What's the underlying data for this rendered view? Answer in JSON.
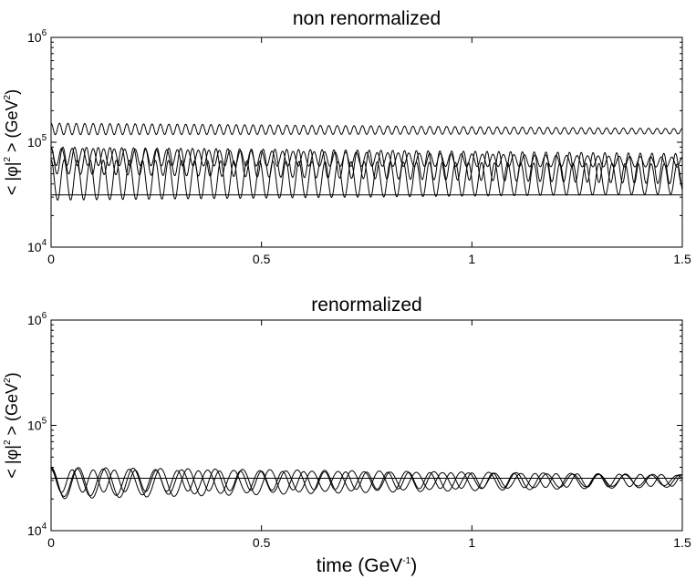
{
  "chart_data": [
    {
      "type": "line",
      "title": "non renormalized",
      "xlabel": "",
      "ylabel_main": "< |φ|",
      "ylabel_exp": "2",
      "ylabel_unit": ">  (GeV",
      "ylabel_unit_exp": "2",
      "ylabel_close": ")",
      "yscale": "log",
      "xlim": [
        0,
        1.5
      ],
      "ylim": [
        10000,
        1000000
      ],
      "xticks": [
        0,
        0.5,
        1,
        1.5
      ],
      "xtick_labels": [
        "0",
        "0.5",
        "1",
        "1.5"
      ],
      "yticks": [
        10000,
        100000,
        1000000
      ],
      "ytick_labels": [
        {
          "base": "10",
          "exp": "4"
        },
        {
          "base": "10",
          "exp": "5"
        },
        {
          "base": "10",
          "exp": "6"
        }
      ],
      "series": [
        {
          "kind": "oscillation",
          "min_start": 118000,
          "max_start": 152000,
          "min_end": 120000,
          "max_end": 135000,
          "period": 0.02
        },
        {
          "kind": "oscillation",
          "min_start": 60000,
          "max_start": 88000,
          "min_end": 58000,
          "max_end": 72000,
          "period": 0.025
        },
        {
          "kind": "oscillation",
          "min_start": 50000,
          "max_start": 90000,
          "min_end": 40000,
          "max_end": 78000,
          "period": 0.028
        },
        {
          "kind": "oscillation",
          "min_start": 28000,
          "max_start": 68000,
          "min_end": 32000,
          "max_end": 62000,
          "period": 0.031
        },
        {
          "kind": "constant",
          "value": 31500
        }
      ]
    },
    {
      "type": "line",
      "title": "renormalized",
      "xlabel_main": "time  (GeV",
      "xlabel_exp": "-1",
      "xlabel_close": ")",
      "ylabel_main": "< |φ|",
      "ylabel_exp": "2",
      "ylabel_unit": ">  (GeV",
      "ylabel_unit_exp": "2",
      "ylabel_close": ")",
      "yscale": "log",
      "xlim": [
        0,
        1.5
      ],
      "ylim": [
        10000,
        1000000
      ],
      "xticks": [
        0,
        0.5,
        1,
        1.5
      ],
      "xtick_labels": [
        "0",
        "0.5",
        "1",
        "1.5"
      ],
      "yticks": [
        10000,
        100000,
        1000000
      ],
      "ytick_labels": [
        {
          "base": "10",
          "exp": "4"
        },
        {
          "base": "10",
          "exp": "5"
        },
        {
          "base": "10",
          "exp": "6"
        }
      ],
      "series": [
        {
          "kind": "oscillation",
          "min_start": 20000,
          "max_start": 40000,
          "min_end": 26000,
          "max_end": 34000,
          "period": 0.065
        },
        {
          "kind": "oscillation",
          "min_start": 21000,
          "max_start": 39000,
          "min_end": 27000,
          "max_end": 33500,
          "period": 0.062
        },
        {
          "kind": "oscillation",
          "min_start": 23000,
          "max_start": 38000,
          "min_end": 26500,
          "max_end": 34000,
          "period": 0.05
        },
        {
          "kind": "constant",
          "value": 31500
        }
      ]
    }
  ]
}
